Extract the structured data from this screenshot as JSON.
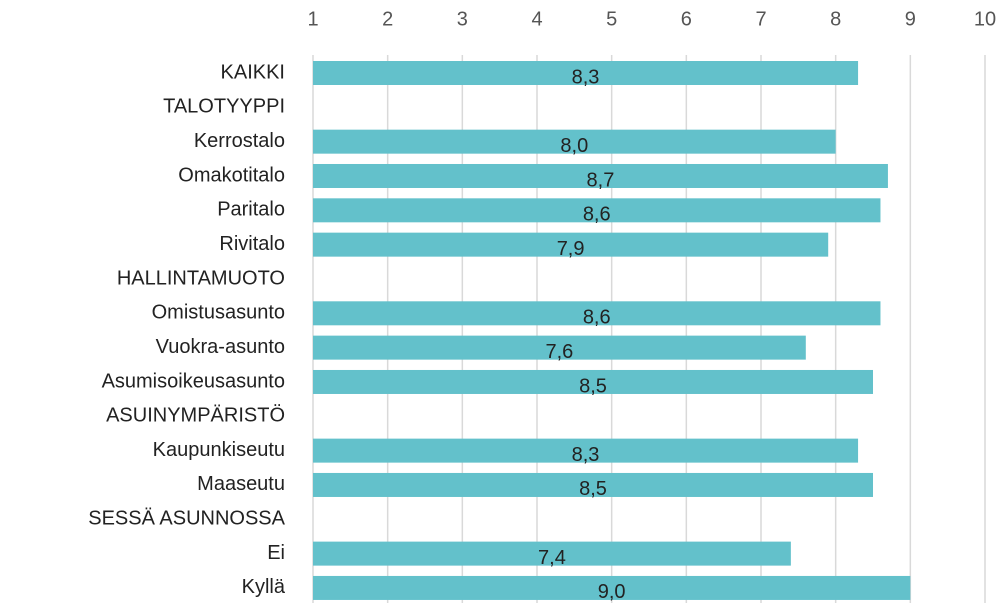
{
  "chart_data": {
    "type": "hbar",
    "categories": [
      "KAIKKI",
      "TALOTYYPPI",
      "Kerrostalo",
      "Omakotitalo",
      "Paritalo",
      "Rivitalo",
      "HALLINTAMUOTO",
      "Omistusasunto",
      "Vuokra-asunto",
      "Asumisoikeusasunto",
      "ASUINYMPÄRISTÖ",
      "Kaupunkiseutu",
      "Maaseutu",
      "SESSÄ ASUNNOSSA",
      "Ei",
      "Kyllä"
    ],
    "values": [
      8.3,
      null,
      8.0,
      8.7,
      8.6,
      7.9,
      null,
      8.6,
      7.6,
      8.5,
      null,
      8.3,
      8.5,
      null,
      7.4,
      9.0
    ],
    "value_labels": [
      "8,3",
      null,
      "8,0",
      "8,7",
      "8,6",
      "7,9",
      null,
      "8,6",
      "7,6",
      "8,5",
      null,
      "8,3",
      "8,5",
      null,
      "7,4",
      "9,0"
    ],
    "color": "#63c1cb",
    "xlim": [
      1,
      10
    ],
    "xticks": [
      1,
      2,
      3,
      4,
      5,
      6,
      7,
      8,
      9,
      10
    ],
    "grid": true
  }
}
